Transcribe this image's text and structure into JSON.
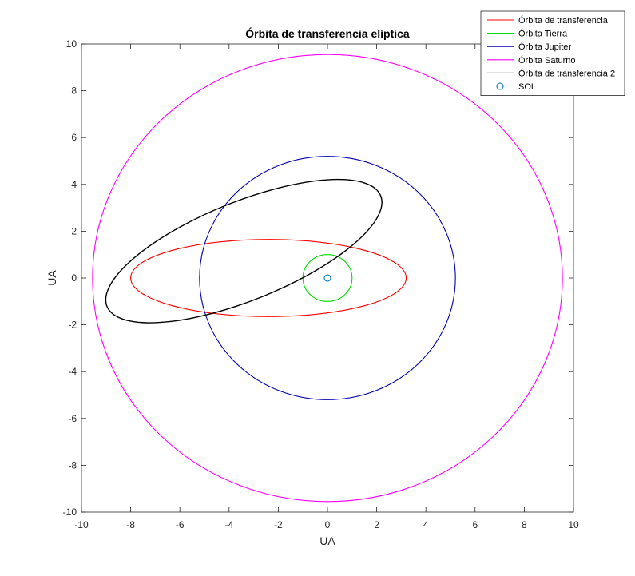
{
  "chart_data": {
    "type": "line",
    "title": "Órbita de transferencia elíptica",
    "xlabel": "UA",
    "ylabel": "UA",
    "xlim": [
      -10,
      10
    ],
    "ylim": [
      -10,
      10
    ],
    "xticks": [
      "-10",
      "-8",
      "-6",
      "-4",
      "-2",
      "0",
      "2",
      "4",
      "6",
      "8",
      "10"
    ],
    "yticks": [
      "-10",
      "-8",
      "-6",
      "-4",
      "-2",
      "0",
      "2",
      "4",
      "6",
      "8",
      "10"
    ],
    "grid": false,
    "legend_position": "top-right",
    "series": [
      {
        "name": "Órbita de transferencia",
        "color": "#ff0000",
        "shape": "ellipse",
        "center": [
          -2.4,
          0.0
        ],
        "semi_axes": [
          5.6,
          1.65
        ],
        "rotation_deg": 0
      },
      {
        "name": "Órbita Tierra",
        "color": "#00dd00",
        "shape": "circle",
        "center": [
          0,
          0
        ],
        "radius": 1.0
      },
      {
        "name": "Órbita Jupiter",
        "color": "#0000aa",
        "shape": "circle",
        "center": [
          0,
          0
        ],
        "radius": 5.2
      },
      {
        "name": "Órbita Saturno",
        "color": "#ff00ff",
        "shape": "circle",
        "center": [
          0,
          0
        ],
        "radius": 9.55
      },
      {
        "name": "Órbita de transferencia 2",
        "color": "#000000",
        "shape": "ellipse",
        "center": [
          -3.4,
          1.15
        ],
        "semi_axes": [
          6.0,
          2.1
        ],
        "rotation_deg": -22
      },
      {
        "name": "SOL",
        "color": "#0072bd",
        "shape": "marker",
        "marker": "o",
        "point": [
          0,
          0
        ]
      }
    ]
  }
}
